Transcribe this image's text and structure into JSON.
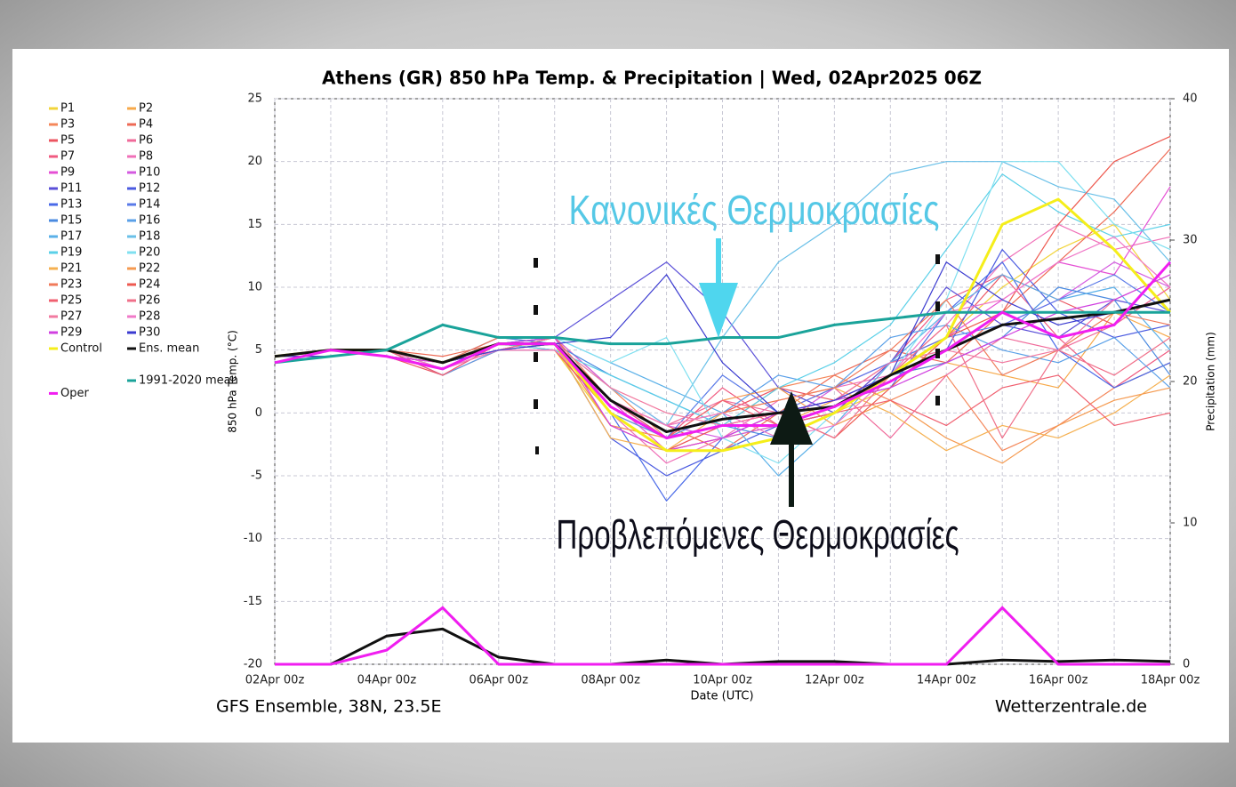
{
  "chart_data": {
    "type": "line",
    "title": "Athens  (GR)  850 hPa Temp. & Precipitation | Wed, 02Apr2025 06Z",
    "y_label": "850 hPa Temp. (°C)",
    "y2_label": "Precipitation (mm)",
    "x_label": "Date (UTC)",
    "footer_left": "GFS Ensemble, 38N, 23.5E",
    "footer_right": "Wetterzentrale.de",
    "annotations": [
      "Κανονικές Θερμοκρασίες",
      "Προβλεπόμενες Θερμοκρασίες"
    ],
    "categories": [
      "02Apr 00z",
      null,
      "04Apr 00z",
      null,
      "06Apr 00z",
      null,
      "08Apr 00z",
      null,
      "10Apr 00z",
      null,
      "12Apr 00z",
      null,
      "14Apr 00z",
      null,
      "16Apr 00z",
      null,
      "18Apr 00z"
    ],
    "ylim": [
      -20,
      25
    ],
    "yticks": [
      -20,
      -15,
      -10,
      -5,
      0,
      5,
      10,
      15,
      20,
      25
    ],
    "y2lim": [
      0,
      40
    ],
    "y2ticks": [
      0,
      10,
      20,
      30,
      40
    ],
    "grid": true,
    "series": [
      {
        "name": "P1",
        "color": "#f2d43a",
        "values": [
          4,
          5,
          4.5,
          4,
          5,
          5,
          -1,
          -3,
          -2,
          -1,
          0,
          2,
          6,
          10,
          13,
          15,
          9
        ]
      },
      {
        "name": "P2",
        "color": "#f7a94a",
        "values": [
          4.5,
          5,
          5,
          4,
          5.5,
          5,
          0,
          -3,
          -2,
          -1,
          1,
          3,
          4,
          3,
          2,
          8,
          6
        ]
      },
      {
        "name": "P3",
        "color": "#f4875a",
        "values": [
          4,
          4.5,
          5,
          3.5,
          5,
          6,
          2,
          -2,
          -1,
          2,
          3,
          1,
          3,
          -3,
          -1,
          2,
          4
        ]
      },
      {
        "name": "P4",
        "color": "#ee6a55",
        "values": [
          4.5,
          5,
          5,
          4.5,
          5.5,
          5,
          1,
          -1,
          -3,
          0,
          3,
          5,
          4,
          8,
          12,
          16,
          21
        ]
      },
      {
        "name": "P5",
        "color": "#ec5560",
        "values": [
          4,
          5,
          4.5,
          3,
          5,
          6,
          0,
          -2,
          0,
          2,
          1,
          4,
          6,
          11,
          9,
          7,
          10
        ]
      },
      {
        "name": "P6",
        "color": "#f06a9a",
        "values": [
          4.5,
          4.5,
          5,
          4,
          5.5,
          5.5,
          1,
          -1,
          1,
          0,
          2,
          -2,
          3,
          6,
          5,
          7,
          10
        ]
      },
      {
        "name": "P7",
        "color": "#f05a80",
        "values": [
          4,
          5,
          5,
          4,
          6,
          5.5,
          -1,
          -2,
          2,
          -1,
          0,
          4,
          9,
          11,
          6,
          2,
          5
        ]
      },
      {
        "name": "P8",
        "color": "#f070b8",
        "values": [
          4.5,
          5,
          4.5,
          3.5,
          5,
          5.5,
          0,
          -4,
          -2,
          1,
          2,
          3,
          7,
          12,
          15,
          13,
          14
        ]
      },
      {
        "name": "P9",
        "color": "#e54fd4",
        "values": [
          4,
          4.5,
          5,
          3,
          5.5,
          5,
          1,
          -3,
          -1,
          0,
          1,
          3,
          6,
          9,
          12,
          11,
          18
        ]
      },
      {
        "name": "P10",
        "color": "#d45ae0",
        "values": [
          4.5,
          5,
          5,
          4,
          5,
          6,
          2,
          -1,
          -2,
          -1,
          2,
          4,
          5,
          7,
          9,
          12,
          10
        ]
      },
      {
        "name": "P11",
        "color": "#5a4fd8",
        "values": [
          4,
          5,
          4.5,
          4,
          5.5,
          6,
          9,
          12,
          8,
          2,
          0,
          4,
          10,
          7,
          6,
          9,
          8
        ]
      },
      {
        "name": "P12",
        "color": "#4a5ae0",
        "values": [
          4.5,
          4.5,
          5,
          4,
          5,
          5.5,
          -2,
          -5,
          -3,
          -1,
          0,
          3,
          5,
          13,
          8,
          6,
          7
        ]
      },
      {
        "name": "P13",
        "color": "#4a6ae8",
        "values": [
          4,
          5,
          5,
          3.5,
          5.5,
          6,
          0,
          -7,
          -2,
          0,
          1,
          2,
          8,
          12,
          5,
          2,
          4
        ]
      },
      {
        "name": "P14",
        "color": "#5a7ae8",
        "values": [
          4.5,
          5,
          4.5,
          4,
          5,
          5,
          1,
          -2,
          3,
          0,
          2,
          4,
          6,
          7,
          9,
          11,
          8
        ]
      },
      {
        "name": "P15",
        "color": "#4a8ae0",
        "values": [
          4,
          4.5,
          5,
          4,
          6,
          5.5,
          3,
          1,
          -1,
          -2,
          0,
          3,
          4,
          6,
          10,
          9,
          3
        ]
      },
      {
        "name": "P16",
        "color": "#5aa0e8",
        "values": [
          4.5,
          5,
          5,
          3,
          5,
          5.5,
          0,
          -2,
          0,
          3,
          2,
          6,
          7,
          5,
          4,
          6,
          2
        ]
      },
      {
        "name": "P17",
        "color": "#5ab0e8",
        "values": [
          4,
          5,
          4.5,
          4,
          5.5,
          6,
          4,
          2,
          0,
          -5,
          -1,
          4,
          8,
          11,
          9,
          10,
          5
        ]
      },
      {
        "name": "P18",
        "color": "#6ac0e8",
        "values": [
          4.5,
          4.5,
          5,
          4,
          5,
          5.5,
          2,
          -1,
          6,
          12,
          15,
          19,
          20,
          20,
          18,
          17,
          12
        ]
      },
      {
        "name": "P19",
        "color": "#5ad0e8",
        "values": [
          4,
          5,
          5,
          3.5,
          5.5,
          5,
          3,
          1,
          -1,
          2,
          4,
          7,
          13,
          19,
          16,
          14,
          15
        ]
      },
      {
        "name": "P20",
        "color": "#80e0f0",
        "values": [
          4.5,
          5,
          4.5,
          4,
          5,
          6,
          4,
          6,
          -2,
          -4,
          0,
          3,
          9,
          20,
          20,
          15,
          13
        ]
      },
      {
        "name": "P21",
        "color": "#f5b050",
        "values": [
          4,
          4.5,
          5,
          4,
          5.5,
          5.5,
          -2,
          -3,
          0,
          1,
          2,
          0,
          -3,
          -1,
          -2,
          0,
          3
        ]
      },
      {
        "name": "P22",
        "color": "#f59a50",
        "values": [
          4.5,
          5,
          5,
          3.5,
          5,
          5.5,
          -1,
          -2,
          1,
          2,
          -1,
          1,
          -2,
          -4,
          -1,
          1,
          2
        ]
      },
      {
        "name": "P23",
        "color": "#f07a5a",
        "values": [
          4,
          5,
          4.5,
          4,
          6,
          6,
          1,
          -1,
          0,
          1,
          2,
          5,
          9,
          3,
          5,
          8,
          7
        ]
      },
      {
        "name": "P24",
        "color": "#ee5a50",
        "values": [
          4.5,
          4.5,
          5,
          4,
          5,
          5,
          0,
          -3,
          -1,
          0,
          -2,
          2,
          6,
          8,
          15,
          20,
          22
        ]
      },
      {
        "name": "P25",
        "color": "#f06070",
        "values": [
          4,
          5,
          5,
          3,
          5.5,
          5.5,
          1,
          -2,
          1,
          -1,
          0,
          1,
          -1,
          2,
          3,
          -1,
          0
        ]
      },
      {
        "name": "P26",
        "color": "#f0708a",
        "values": [
          4.5,
          5,
          4.5,
          4,
          5,
          6,
          0,
          -3,
          -2,
          0,
          -2,
          3,
          7,
          -2,
          5,
          3,
          6
        ]
      },
      {
        "name": "P27",
        "color": "#f27aa0",
        "values": [
          4,
          4.5,
          5,
          4,
          5.5,
          5.5,
          2,
          0,
          -1,
          0,
          1,
          4,
          5,
          4,
          5,
          9,
          11
        ]
      },
      {
        "name": "P28",
        "color": "#f07ac8",
        "values": [
          4.5,
          5,
          5,
          3.5,
          5,
          5,
          1,
          -1,
          0,
          -2,
          -1,
          3,
          8,
          9,
          12,
          14,
          10
        ]
      },
      {
        "name": "P29",
        "color": "#d040e0",
        "values": [
          4,
          5,
          4.5,
          4,
          5.5,
          6,
          -1,
          -3,
          -2,
          0,
          1,
          2,
          4,
          6,
          8,
          9,
          11
        ]
      },
      {
        "name": "P30",
        "color": "#3a3ad0",
        "values": [
          4.5,
          4.5,
          5,
          4,
          5,
          5.5,
          6,
          11,
          4,
          0,
          1,
          3,
          12,
          9,
          7,
          8,
          8
        ]
      },
      {
        "name": "Control",
        "color": "#f5ee1a",
        "width": 3,
        "values": [
          4.5,
          5,
          5,
          4,
          5.5,
          5.5,
          0,
          -3,
          -3,
          -2,
          0,
          3,
          6,
          15,
          17,
          13,
          8
        ]
      },
      {
        "name": "Ens. mean",
        "color": "#111111",
        "width": 3,
        "values": [
          4.5,
          5,
          5,
          4,
          5.5,
          5.5,
          1,
          -1.5,
          -0.5,
          0,
          0.5,
          3,
          5,
          7,
          7.5,
          8,
          9
        ],
        "precipitation": [
          0,
          0,
          2,
          2.5,
          0.5,
          0,
          0,
          0.3,
          0,
          0.2,
          0.2,
          0,
          0,
          0.3,
          0.2,
          0.3,
          0.2
        ]
      },
      {
        "name": "1991-2020 mean",
        "color": "#1aa39a",
        "width": 3,
        "values": [
          4,
          4.5,
          5,
          7,
          6,
          6,
          5.5,
          5.5,
          6,
          6,
          7,
          7.5,
          8,
          8,
          8,
          8,
          8
        ]
      },
      {
        "name": "Oper",
        "color": "#f01ef0",
        "width": 3,
        "values": [
          4,
          5,
          4.5,
          3.5,
          5.5,
          5.5,
          0.5,
          -2,
          -1,
          -1,
          0.5,
          2.5,
          5,
          8,
          6,
          7,
          12
        ],
        "precipitation": [
          0,
          0,
          1,
          4,
          0,
          0,
          0,
          0,
          0,
          0,
          0,
          0,
          0,
          4,
          0,
          0,
          0
        ]
      }
    ]
  }
}
